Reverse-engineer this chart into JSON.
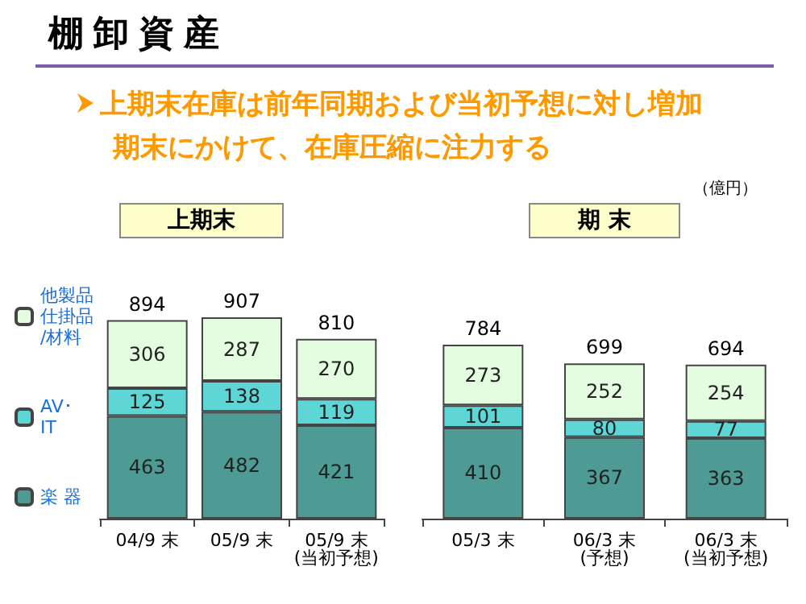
{
  "chart_data": [
    {
      "type": "bar",
      "title": "上期末",
      "subtitle": "上期末在庫は前年同期および当初予想に対し増加期末にかけて、在庫圧縮に注力する",
      "annotations": [
        "棚卸資産",
        "（億円）"
      ],
      "categories": [
        "04/9 末",
        "05/9 末",
        "05/9 末\n(当初予想)"
      ],
      "stacked": true,
      "data_labels": true,
      "legend": "left",
      "totals": [
        "894",
        "907",
        "810"
      ],
      "series": [
        {
          "name": "楽 器",
          "color": "#4e9a94",
          "values": [
            463,
            482,
            421
          ]
        },
        {
          "name": "AV･IT",
          "color": "#5ed6d6",
          "values": [
            125,
            138,
            119
          ]
        },
        {
          "name": "他製品仕掛品/材料",
          "color": "#e4fde0",
          "values": [
            306,
            287,
            270
          ]
        }
      ]
    },
    {
      "type": "bar",
      "title": "期 末",
      "categories": [
        "05/3 末",
        "06/3 末\n(予想)",
        "06/3 末\n(当初予想)"
      ],
      "stacked": true,
      "data_labels": true,
      "totals": [
        "784",
        "699",
        "694"
      ],
      "series": [
        {
          "color": "#4e9a94",
          "values": [
            410,
            367,
            363
          ]
        },
        {
          "color": "#5ed6d6",
          "values": [
            101,
            80,
            77
          ]
        },
        {
          "color": "#e4fde0",
          "values": [
            273,
            252,
            254
          ]
        }
      ]
    }
  ]
}
